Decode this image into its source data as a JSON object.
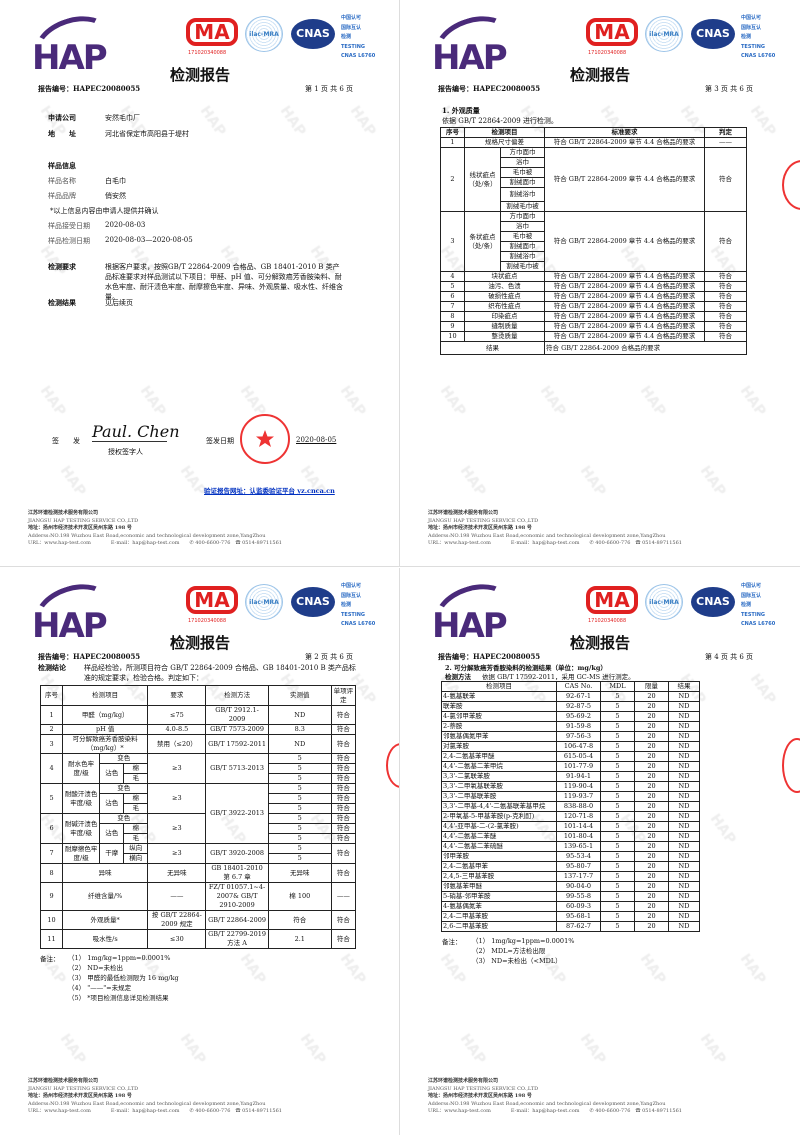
{
  "header": {
    "logo_text": "HAP",
    "ma_text": "MA",
    "ma_number": "171020340088",
    "ilac_text": "ilac-MRA",
    "cnas_text": "CNAS",
    "cnas_lines": [
      "中国认可",
      "国际互认",
      "检测",
      "TESTING",
      "CNAS L6760"
    ],
    "title": "检测报告",
    "report_no": "报告编号：HAPEC20080055",
    "watermark": "HAP"
  },
  "footer": {
    "company_cn": "江苏环谱检测技术服务有限公司",
    "company_en": "JIANGSU HAP TESTING SERVICE CO.,LTD",
    "address_cn": "地址：扬州市经济技术开发区吴州东路 198 号",
    "address_en": "Adderss:NO.198 Wuzhou East Road,economic and technological development zone,YangZhou",
    "url": "URL：www.hap-test.com",
    "email": "E-mail：hap@hap-test.com",
    "tel": "400-6600-776",
    "fax": "0514-89711561"
  },
  "page1": {
    "page_no": "第 1 页 共 6 页",
    "applicant_label": "申请公司",
    "applicant": "安然毛巾厂",
    "address_label": "地　　址",
    "address": "河北省保定市高阳县于堤村",
    "sample_info": "样品信息",
    "sample_name_label": "样品名称",
    "sample_name": "白毛巾",
    "brand_label": "样品品牌",
    "brand": "俏安然",
    "note": "*以上信息内容由申请人提供并确认",
    "received_label": "样品接受日期",
    "received": "2020-08-03",
    "test_date_label": "样品检测日期",
    "test_date": "2020-08-03—2020-08-05",
    "requirement_label": "检测要求",
    "requirement": "根据客户要求，按照GB/T 22864-2009 合格品、GB 18401-2010 B 类产品标准要求对样品测试以下项目：甲醛、pH 值、可分解致癌芳香胺染料、耐水色牢度、耐汗渍色牢度、耐摩擦色牢度、异味、外观质量、吸水性、纤维含量。",
    "result_label": "检测结果",
    "result": "见后续页",
    "sign_label": "签　　发",
    "signature": "Paul. Chen",
    "signer_role": "授权签字人",
    "sign_date_label": "签发日期",
    "sign_date": "2020-08-05",
    "verify": "验证报告网址：认监委验证平台 yz.cnca.cn"
  },
  "page3": {
    "page_no": "第 3 页 共 6 页",
    "section": "1. 外观质量",
    "basis": "依据 GB/T 22864-2009 进行检测。",
    "headers": [
      "序号",
      "检测项目",
      "标准要求",
      "判定"
    ],
    "req": "符合 GB/T 22864-2009 章节 4.4 合格品的要求",
    "pass": "符合",
    "dash": "——",
    "row1": "规格尺寸偏差",
    "row2": "线状疵点（处/条）",
    "row3": "条状疵点（处/条）",
    "subs": [
      "方巾面巾",
      "浴巾",
      "毛巾被",
      "割绒面巾",
      "割绒浴巾",
      "割绒毛巾被"
    ],
    "rows": [
      "块状疵点",
      "油污、色渍",
      "破损性疵点",
      "织布性疵点",
      "印染疵点",
      "缝制质量",
      "整烫质量"
    ],
    "result_label": "结果",
    "result": "符合 GB/T 22864-2009 合格品的要求"
  },
  "page2": {
    "page_no": "第 2 页 共 6 页",
    "conclusion_label": "检测结论",
    "conclusion": "样品经检验，所测项目符合 GB/T 22864-2009 合格品、GB 18401-2010 B 类产品标准的规定要求，检验合格。判定如下：",
    "headers": [
      "序号",
      "检测项目",
      "要求",
      "检测方法",
      "实测值",
      "单项评定"
    ],
    "pass": "符合",
    "five": "5",
    "ge3": "≥3",
    "dash": "——",
    "discolor": "变色",
    "stain": "沾色",
    "cotton": "棉",
    "wool": "毛",
    "r1": [
      "1",
      "甲醛（mg/kg）",
      "≤75",
      "GB/T 2912.1-2009",
      "ND"
    ],
    "r2": [
      "2",
      "pH 值",
      "4.0-8.5",
      "GB/T 7573-2009",
      "8.3"
    ],
    "r3": [
      "3",
      "可分解致癌芳香胺染料（mg/kg）*",
      "禁用（≤20）",
      "GB/T 17592-2011",
      "ND"
    ],
    "r4": [
      "4",
      "耐水色牢度/级",
      "GB/T 5713-2013"
    ],
    "r5": [
      "5",
      "耐酸汗渍色牢度/级",
      "GB/T 3922-2013"
    ],
    "r6": [
      "6",
      "耐碱汗渍色牢度/级"
    ],
    "r7": [
      "7",
      "耐摩擦色牢度/级",
      "干摩",
      "纵向",
      "横向",
      "GB/T 3920-2008"
    ],
    "r8": [
      "8",
      "异味",
      "无异味",
      "GB 18401-2010 第 6.7 章",
      "无异味"
    ],
    "r9": [
      "9",
      "纤维含量/%",
      "FZ/T 01057.1~4-2007& GB/T 2910-2009",
      "棉 100"
    ],
    "r10": [
      "10",
      "外观质量*",
      "按 GB/T 22864-2009 规定",
      "GB/T 22864-2009",
      "符合"
    ],
    "r11": [
      "11",
      "吸水性/s",
      "≤30",
      "GB/T 22799-2019 方法 A",
      "2.1"
    ],
    "notes_label": "备注：",
    "notes": [
      "（1） 1mg/kg=1ppm=0.0001%",
      "（2） ND=未检出",
      "（3） 甲醛的最低检测限为 16 mg/kg",
      "（4） \"——\"=未规定",
      "（5） *项目检测信息详见检测结果"
    ]
  },
  "page4": {
    "page_no": "第 4 页 共 6 页",
    "section": "2. 可分解致癌芳香胺染料的检测结果（单位：mg/kg）",
    "method_label": "检测方法",
    "method": "依据 GB/T 17592-2011，采用 GC-MS 进行测定。",
    "headers": [
      "检测项目",
      "CAS No.",
      "MDL",
      "限量",
      "结果"
    ],
    "rows": [
      [
        "4-氨基联苯",
        "92-67-1",
        "5",
        "20",
        "ND"
      ],
      [
        "联苯胺",
        "92-87-5",
        "5",
        "20",
        "ND"
      ],
      [
        "4-氯邻甲苯胺",
        "95-69-2",
        "5",
        "20",
        "ND"
      ],
      [
        "2-萘胺",
        "91-59-8",
        "5",
        "20",
        "ND"
      ],
      [
        "邻氨基偶氮甲苯",
        "97-56-3",
        "5",
        "20",
        "ND"
      ],
      [
        "对氯苯胺",
        "106-47-8",
        "5",
        "20",
        "ND"
      ],
      [
        "2,4-二氨基苯甲醚",
        "615-05-4",
        "5",
        "20",
        "ND"
      ],
      [
        "4,4'-二氨基二苯甲烷",
        "101-77-9",
        "5",
        "20",
        "ND"
      ],
      [
        "3,3'-二氯联苯胺",
        "91-94-1",
        "5",
        "20",
        "ND"
      ],
      [
        "3,3'-二甲氧基联苯胺",
        "119-90-4",
        "5",
        "20",
        "ND"
      ],
      [
        "3,3'-二甲基联苯胺",
        "119-93-7",
        "5",
        "20",
        "ND"
      ],
      [
        "3,3'-二甲基-4,4'-二氨基联苯基甲烷",
        "838-88-0",
        "5",
        "20",
        "ND"
      ],
      [
        "2-甲氧基-5-甲基苯胺(p-克利酊)",
        "120-71-8",
        "5",
        "20",
        "ND"
      ],
      [
        "4,4'-亚甲基-二-(2-氯苯胺)",
        "101-14-4",
        "5",
        "20",
        "ND"
      ],
      [
        "4,4'-二氨基二苯醚",
        "101-80-4",
        "5",
        "20",
        "ND"
      ],
      [
        "4,4'-二氨基二苯硫醚",
        "139-65-1",
        "5",
        "20",
        "ND"
      ],
      [
        "邻甲苯胺",
        "95-53-4",
        "5",
        "20",
        "ND"
      ],
      [
        "2,4-二氨基甲苯",
        "95-80-7",
        "5",
        "20",
        "ND"
      ],
      [
        "2,4,5-三甲基苯胺",
        "137-17-7",
        "5",
        "20",
        "ND"
      ],
      [
        "邻氨基苯甲醚",
        "90-04-0",
        "5",
        "20",
        "ND"
      ],
      [
        "5-硝基-邻甲苯胺",
        "99-55-8",
        "5",
        "20",
        "ND"
      ],
      [
        "4-氨基偶氮苯",
        "60-09-3",
        "5",
        "20",
        "ND"
      ],
      [
        "2,4-二甲基苯胺",
        "95-68-1",
        "5",
        "20",
        "ND"
      ],
      [
        "2,6-二甲基苯胺",
        "87-62-7",
        "5",
        "20",
        "ND"
      ]
    ],
    "notes_label": "备注：",
    "notes": [
      "（1） 1mg/kg=1ppm=0.0001%",
      "（2） MDL=方法检出限",
      "（3） ND=未检出（<MDL）"
    ]
  }
}
